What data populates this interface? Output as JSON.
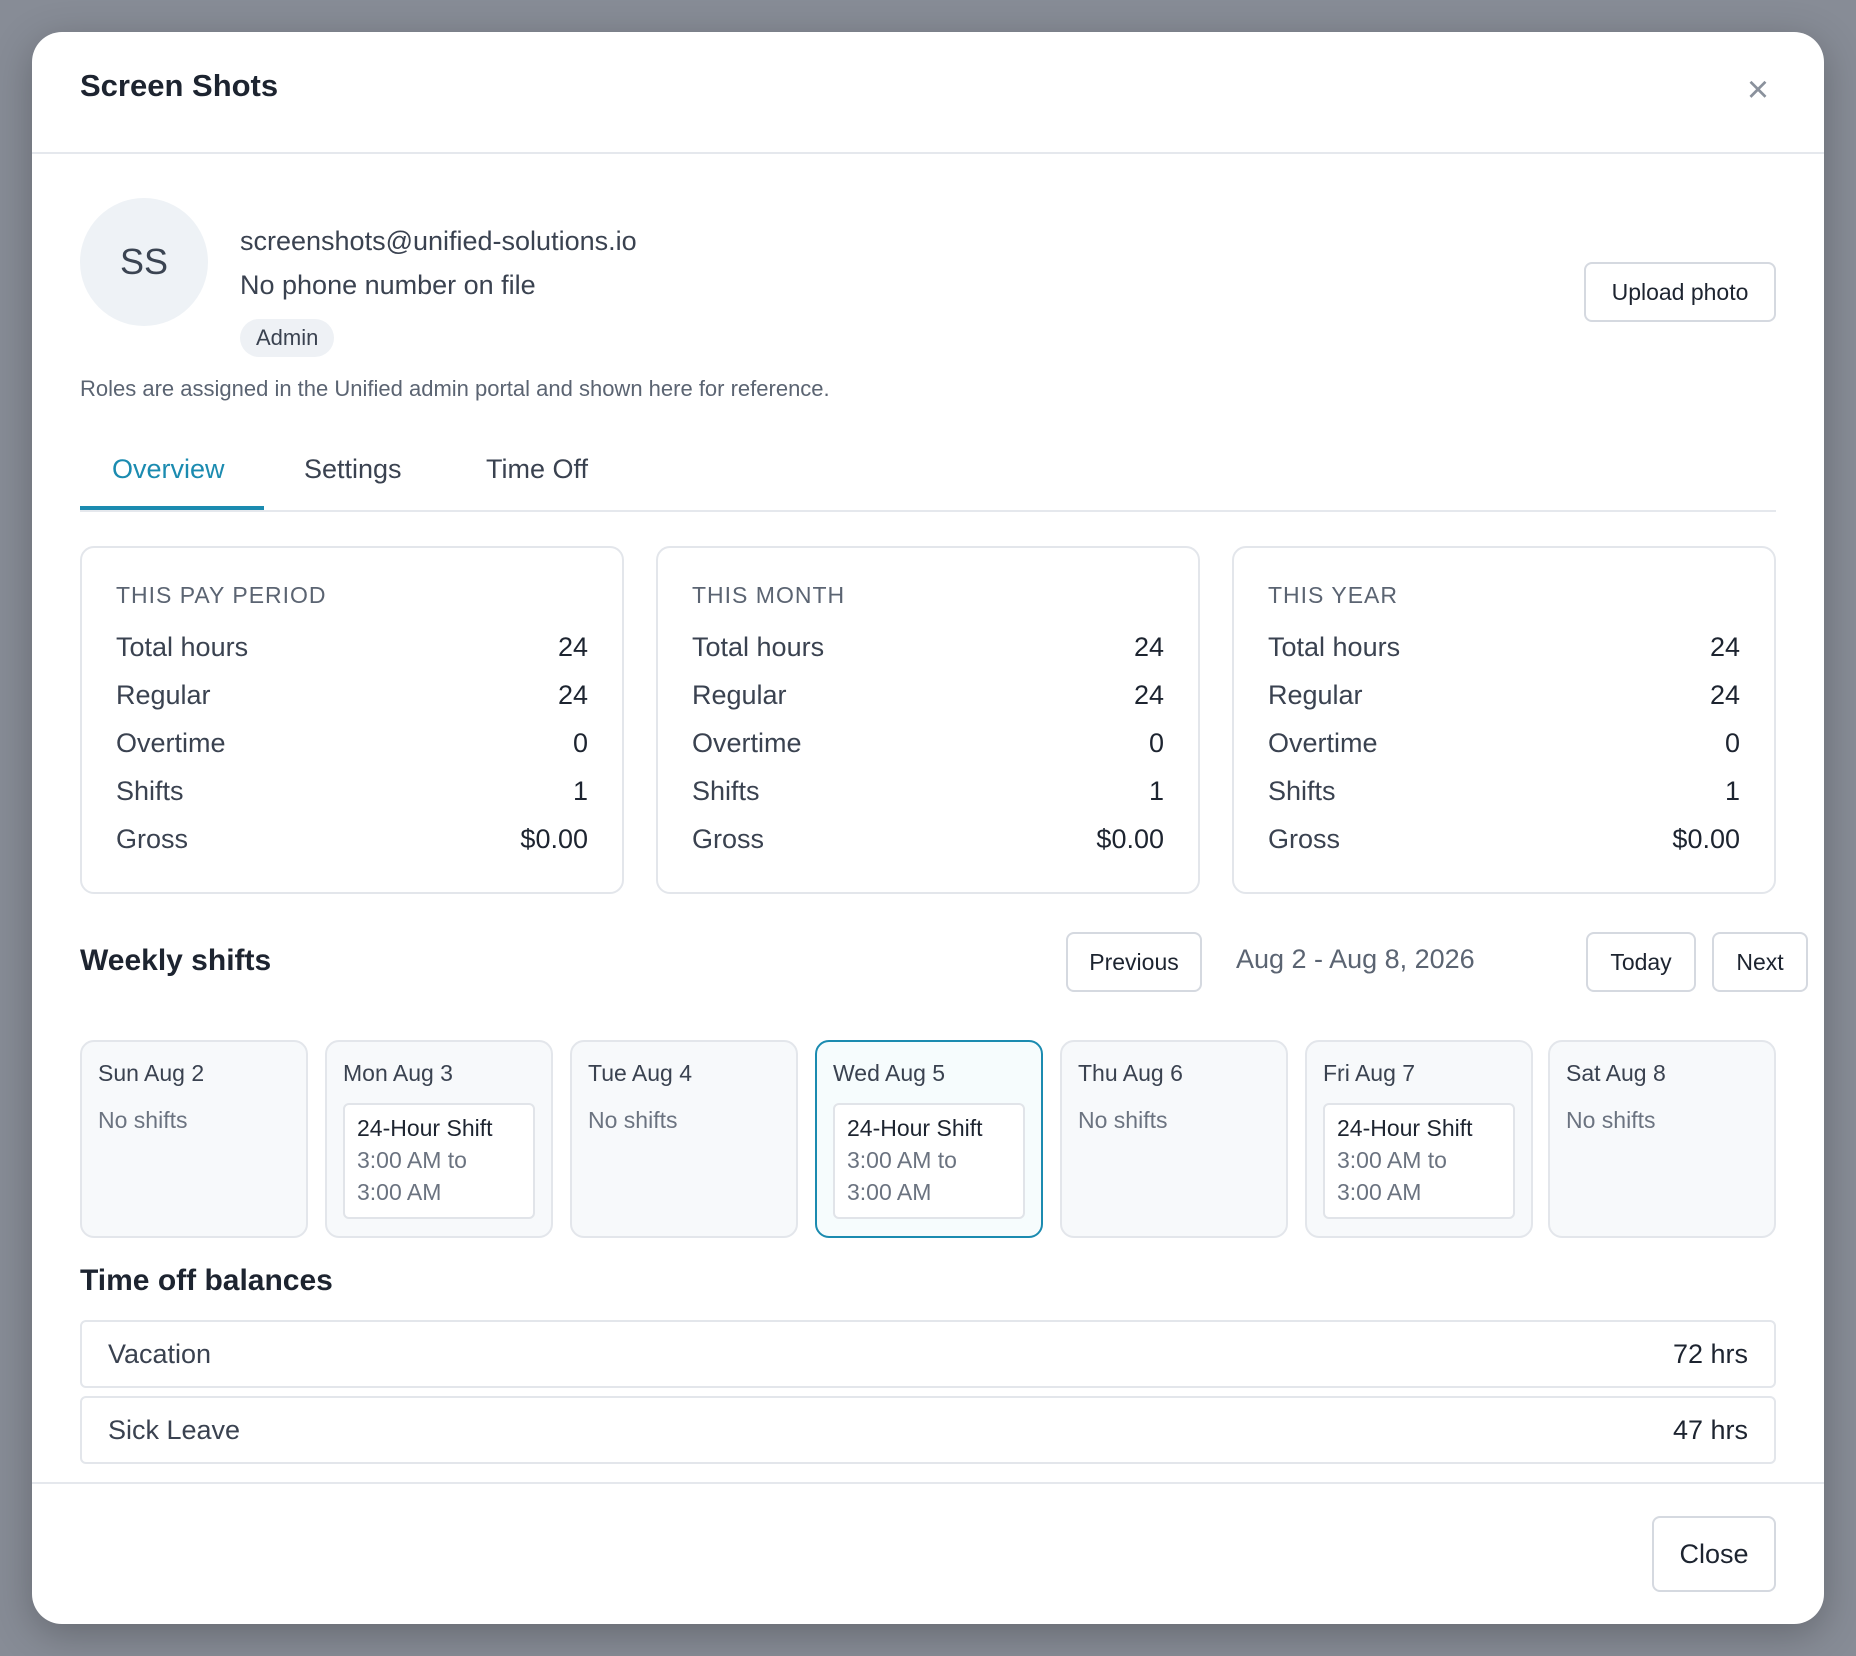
{
  "modal": {
    "title": "Screen Shots",
    "close_icon": "close-icon"
  },
  "profile": {
    "initials": "SS",
    "email": "screenshots@unified-solutions.io",
    "phone": "No phone number on file",
    "role": "Admin",
    "upload_label": "Upload photo",
    "roles_note": "Roles are assigned in the Unified admin portal and shown here for reference."
  },
  "tabs": [
    {
      "label": "Overview",
      "active": true
    },
    {
      "label": "Settings",
      "active": false
    },
    {
      "label": "Time Off",
      "active": false
    }
  ],
  "stats": [
    {
      "title": "THIS PAY PERIOD",
      "rows": [
        {
          "label": "Total hours",
          "value": "24"
        },
        {
          "label": "Regular",
          "value": "24"
        },
        {
          "label": "Overtime",
          "value": "0"
        },
        {
          "label": "Shifts",
          "value": "1"
        },
        {
          "label": "Gross",
          "value": "$0.00"
        }
      ]
    },
    {
      "title": "THIS MONTH",
      "rows": [
        {
          "label": "Total hours",
          "value": "24"
        },
        {
          "label": "Regular",
          "value": "24"
        },
        {
          "label": "Overtime",
          "value": "0"
        },
        {
          "label": "Shifts",
          "value": "1"
        },
        {
          "label": "Gross",
          "value": "$0.00"
        }
      ]
    },
    {
      "title": "THIS YEAR",
      "rows": [
        {
          "label": "Total hours",
          "value": "24"
        },
        {
          "label": "Regular",
          "value": "24"
        },
        {
          "label": "Overtime",
          "value": "0"
        },
        {
          "label": "Shifts",
          "value": "1"
        },
        {
          "label": "Gross",
          "value": "$0.00"
        }
      ]
    }
  ],
  "weekly": {
    "title": "Weekly shifts",
    "previous_label": "Previous",
    "range": "Aug 2 - Aug 8, 2026",
    "today_label": "Today",
    "next_label": "Next",
    "days": [
      {
        "label": "Sun Aug 2",
        "empty_text": "No shifts"
      },
      {
        "label": "Mon Aug 3",
        "shift": {
          "name": "24-Hour Shift",
          "time_line1": "3:00 AM to",
          "time_line2": "3:00 AM"
        }
      },
      {
        "label": "Tue Aug 4",
        "empty_text": "No shifts"
      },
      {
        "label": "Wed Aug 5",
        "today": true,
        "shift": {
          "name": "24-Hour Shift",
          "time_line1": "3:00 AM to",
          "time_line2": "3:00 AM"
        }
      },
      {
        "label": "Thu Aug 6",
        "empty_text": "No shifts"
      },
      {
        "label": "Fri Aug 7",
        "shift": {
          "name": "24-Hour Shift",
          "time_line1": "3:00 AM to",
          "time_line2": "3:00 AM"
        }
      },
      {
        "label": "Sat Aug 8",
        "empty_text": "No shifts"
      }
    ]
  },
  "balances": {
    "title": "Time off balances",
    "items": [
      {
        "label": "Vacation",
        "value": "72 hrs"
      },
      {
        "label": "Sick Leave",
        "value": "47 hrs"
      }
    ]
  },
  "footer": {
    "close_label": "Close"
  },
  "colors": {
    "accent": "#1b8bb0",
    "backdrop": "#878c96"
  }
}
